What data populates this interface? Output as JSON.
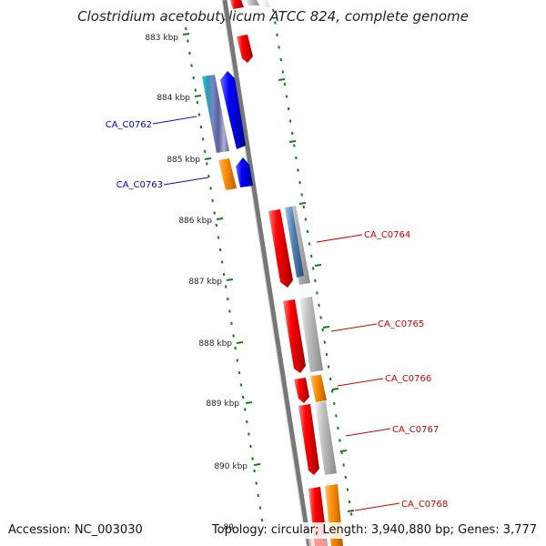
{
  "header": {
    "title": "Clostridium acetobutylicum ATCC 824, complete genome"
  },
  "footer": {
    "accession": "Accession: NC_003030",
    "summary": "Topology: circular; Length: 3,940,880 bp; Genes: 3,777"
  },
  "ticks": [
    "883 kbp",
    "884 kbp",
    "885 kbp",
    "886 kbp",
    "887 kbp",
    "888 kbp",
    "889 kbp",
    "890 kbp",
    "89"
  ],
  "genes": [
    {
      "label": "CA_C0762",
      "strand": "minus",
      "color": "#0000cc"
    },
    {
      "label": "CA_C0763",
      "strand": "minus",
      "color": "#0000cc"
    },
    {
      "label": "CA_C0764",
      "strand": "plus",
      "color": "#cc0000"
    },
    {
      "label": "CA_C0765",
      "strand": "plus",
      "color": "#cc0000"
    },
    {
      "label": "CA_C0766",
      "strand": "plus",
      "color": "#cc0000"
    },
    {
      "label": "CA_C0767",
      "strand": "plus",
      "color": "#cc0000"
    },
    {
      "label": "CA_C0768",
      "strand": "plus",
      "color": "#cc0000"
    }
  ],
  "colors": {
    "backbone": "#777777",
    "tick": "#1a7a1a",
    "plus_gene": "#ff0000",
    "minus_gene": "#0000ff",
    "cog_orange": "#ff8c00",
    "cog_gray": "#b8b8b8",
    "cog_steel": "#4a7ab0",
    "cog_teal": "#2bb5b5"
  }
}
